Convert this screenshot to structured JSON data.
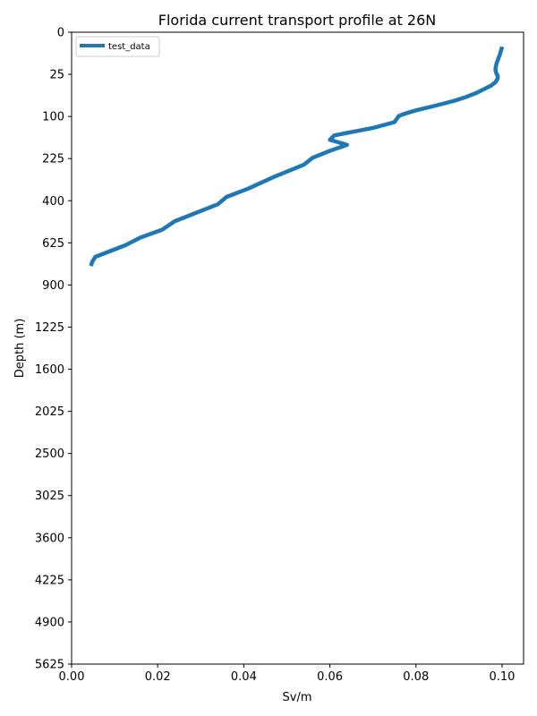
{
  "chart_data": {
    "type": "line",
    "title": "Florida current transport profile at 26N",
    "xlabel": "Sv/m",
    "ylabel": "Depth (m)",
    "xlim": [
      0.0,
      0.105
    ],
    "ylim": [
      5625,
      0
    ],
    "y_scale": "sqrt",
    "y_inverted": true,
    "grid": false,
    "legend_position": "top-left",
    "x_ticks": [
      0.0,
      0.02,
      0.04,
      0.06,
      0.08,
      0.1
    ],
    "x_tick_labels": [
      "0.00",
      "0.02",
      "0.04",
      "0.06",
      "0.08",
      "0.10"
    ],
    "y_ticks": [
      0,
      25,
      100,
      225,
      400,
      625,
      900,
      1225,
      1600,
      2025,
      2500,
      3025,
      3600,
      4225,
      4900,
      5625
    ],
    "y_tick_labels": [
      "0",
      "25",
      "100",
      "225",
      "400",
      "625",
      "900",
      "1225",
      "1600",
      "2025",
      "2500",
      "3025",
      "3600",
      "4225",
      "4900",
      "5625"
    ],
    "series": [
      {
        "name": "test_data",
        "color": "#1f77b4",
        "x": [
          0.1,
          0.0995,
          0.099,
          0.0987,
          0.0985,
          0.0985,
          0.0987,
          0.099,
          0.099,
          0.0985,
          0.0975,
          0.096,
          0.094,
          0.092,
          0.089,
          0.085,
          0.08,
          0.077,
          0.076,
          0.075,
          0.07,
          0.061,
          0.06,
          0.064,
          0.06,
          0.056,
          0.054,
          0.047,
          0.041,
          0.036,
          0.034,
          0.024,
          0.021,
          0.016,
          0.0125,
          0.0055,
          0.0048,
          0.0045
        ],
        "y": [
          3,
          7,
          11,
          14,
          18,
          21,
          24,
          27,
          30,
          35,
          40,
          45,
          52,
          58,
          66,
          75,
          86,
          95,
          99,
          114,
          129,
          150,
          163,
          179,
          198,
          222,
          247,
          295,
          345,
          382,
          417,
          503,
          550,
          594,
          639,
          711,
          743,
          770
        ]
      }
    ]
  }
}
